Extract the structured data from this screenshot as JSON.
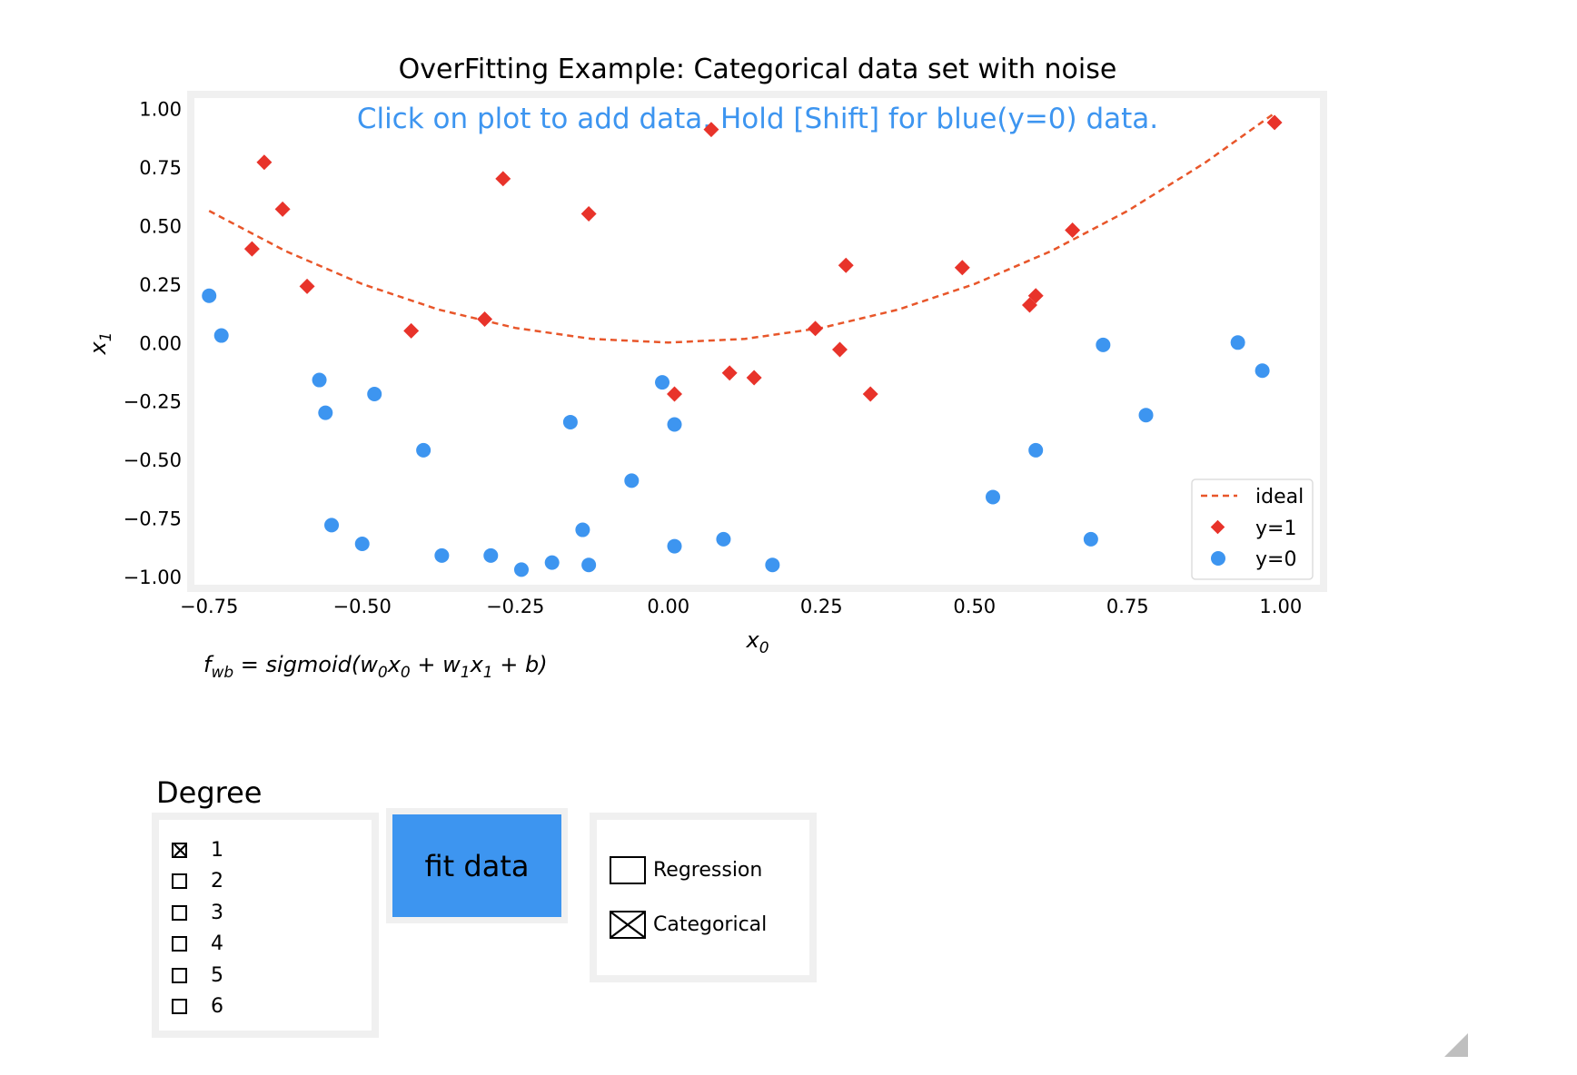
{
  "chart_data": {
    "type": "scatter",
    "title": "OverFitting Example: Categorical data set with noise",
    "subtitle": "Click on plot to add data. Hold [Shift] for blue(y=0) data.",
    "xlabel_base": "x",
    "xlabel_sub": "0",
    "ylabel_base": "x",
    "ylabel_sub": "1",
    "xlim": [
      -0.78,
      1.07
    ],
    "ylim": [
      -1.05,
      1.06
    ],
    "xticks": [
      -0.75,
      -0.5,
      -0.25,
      0.0,
      0.25,
      0.5,
      0.75,
      1.0
    ],
    "xtick_labels": [
      "−0.75",
      "−0.50",
      "−0.25",
      "0.00",
      "0.25",
      "0.50",
      "0.75",
      "1.00"
    ],
    "yticks": [
      1.0,
      0.75,
      0.5,
      0.25,
      0.0,
      -0.25,
      -0.5,
      -0.75,
      -1.0
    ],
    "ytick_labels": [
      "1.00",
      "0.75",
      "0.50",
      "0.25",
      "0.00",
      "−0.25",
      "−0.50",
      "−0.75",
      "−1.00"
    ],
    "grid": false,
    "legend_position": "bottom-right",
    "series": [
      {
        "name": "ideal",
        "kind": "line",
        "style": "dashed",
        "color": "#e8562a",
        "x": [
          -0.75,
          -0.625,
          -0.5,
          -0.375,
          -0.25,
          -0.125,
          0.0,
          0.125,
          0.25,
          0.375,
          0.5,
          0.625,
          0.75,
          0.875,
          0.99
        ],
        "y": [
          0.5625,
          0.3906,
          0.25,
          0.1406,
          0.0625,
          0.0156,
          0.0,
          0.0156,
          0.0625,
          0.1406,
          0.25,
          0.3906,
          0.5625,
          0.7656,
          0.98
        ]
      },
      {
        "name": "y=1",
        "kind": "scatter",
        "marker": "diamond",
        "color": "#e8332a",
        "x": [
          -0.66,
          -0.63,
          -0.68,
          -0.59,
          -0.42,
          -0.3,
          -0.27,
          -0.13,
          0.07,
          0.01,
          0.1,
          0.14,
          0.24,
          0.28,
          0.29,
          0.33,
          0.48,
          0.59,
          0.6,
          0.66,
          0.99
        ],
        "y": [
          0.77,
          0.57,
          0.4,
          0.24,
          0.05,
          0.1,
          0.7,
          0.55,
          0.91,
          -0.22,
          -0.13,
          -0.15,
          0.06,
          -0.03,
          0.33,
          -0.22,
          0.32,
          0.16,
          0.2,
          0.48,
          0.94
        ]
      },
      {
        "name": "y=0",
        "kind": "scatter",
        "marker": "circle",
        "color": "#3d95f0",
        "x": [
          -0.75,
          -0.73,
          -0.57,
          -0.56,
          -0.48,
          -0.55,
          -0.5,
          -0.4,
          -0.37,
          -0.29,
          -0.24,
          -0.19,
          -0.16,
          -0.14,
          -0.13,
          -0.06,
          -0.01,
          0.01,
          0.01,
          0.09,
          0.17,
          0.53,
          0.6,
          0.69,
          0.71,
          0.78,
          0.93,
          0.95,
          0.97
        ],
        "y": [
          0.2,
          0.03,
          -0.16,
          -0.3,
          -0.22,
          -0.78,
          -0.86,
          -0.46,
          -0.91,
          -0.91,
          -0.97,
          -0.94,
          -0.34,
          -0.8,
          -0.95,
          -0.59,
          -0.17,
          -0.35,
          -0.87,
          -0.84,
          -0.95,
          -0.66,
          -0.46,
          -0.84,
          -0.01,
          -0.31,
          0.0,
          -0.77,
          -0.12
        ]
      }
    ]
  },
  "equation": {
    "f": "f",
    "f_sub": "wb",
    "body": " = sigmoid(w",
    "w0_sub": "0",
    "x0": "x",
    "x0_sub": "0",
    "plus1": " + w",
    "w1_sub": "1",
    "x1": "x",
    "x1_sub": "1",
    "tail": " + b)"
  },
  "degree": {
    "title": "Degree",
    "options": [
      {
        "label": "1",
        "checked": true
      },
      {
        "label": "2",
        "checked": false
      },
      {
        "label": "3",
        "checked": false
      },
      {
        "label": "4",
        "checked": false
      },
      {
        "label": "5",
        "checked": false
      },
      {
        "label": "6",
        "checked": false
      }
    ]
  },
  "fit_button": {
    "label": "fit data",
    "color": "#3d95f0"
  },
  "mode": {
    "options": [
      {
        "label": "Regression",
        "checked": false
      },
      {
        "label": "Categorical",
        "checked": true
      }
    ]
  },
  "icons": {
    "resize_handle": "resize-grip-icon"
  }
}
